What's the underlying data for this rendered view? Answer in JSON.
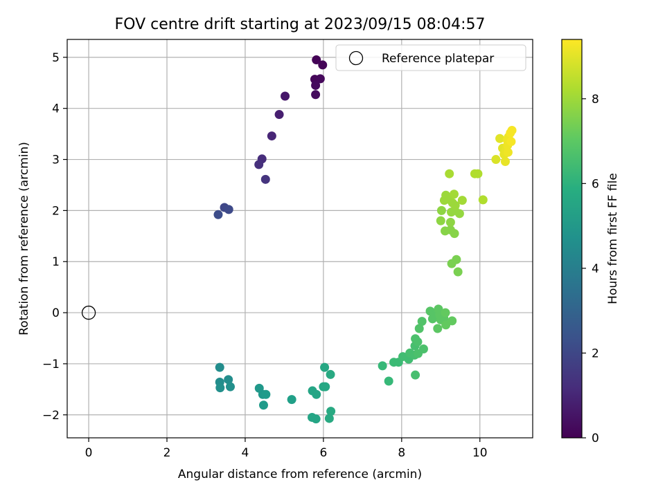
{
  "chart_data": {
    "type": "scatter",
    "title": "FOV centre drift starting at 2023/09/15 08:04:57",
    "xlabel": "Angular distance from reference (arcmin)",
    "ylabel": "Rotation from reference (arcmin)",
    "xlim": [
      -0.55,
      11.35
    ],
    "ylim": [
      -2.45,
      5.35
    ],
    "xticks": [
      "0",
      "2",
      "4",
      "6",
      "8",
      "10"
    ],
    "yticks": [
      "−2",
      "−1",
      "0",
      "1",
      "2",
      "3",
      "4",
      "5"
    ],
    "xtick_values": [
      0,
      2,
      4,
      6,
      8,
      10
    ],
    "ytick_values": [
      -2,
      -1,
      0,
      1,
      2,
      3,
      4,
      5
    ],
    "grid": true,
    "legend": {
      "position": "top-right",
      "entries": [
        "Reference platepar"
      ]
    },
    "reference_point": {
      "x": 0,
      "y": 0,
      "marker": "hollow-circle"
    },
    "colorbar": {
      "label": "Hours from first FF file",
      "colormap": "viridis",
      "range": [
        0,
        9.4
      ],
      "ticks": [
        "0",
        "2",
        "4",
        "6",
        "8"
      ],
      "tick_values": [
        0,
        2,
        4,
        6,
        8
      ]
    },
    "points": [
      {
        "x": 5.82,
        "y": 4.95,
        "c": 0.05
      },
      {
        "x": 5.98,
        "y": 4.85,
        "c": 0.1
      },
      {
        "x": 5.78,
        "y": 4.57,
        "c": 0.15
      },
      {
        "x": 5.92,
        "y": 4.58,
        "c": 0.2
      },
      {
        "x": 5.8,
        "y": 4.45,
        "c": 0.25
      },
      {
        "x": 5.8,
        "y": 4.27,
        "c": 0.3
      },
      {
        "x": 5.02,
        "y": 4.24,
        "c": 0.6
      },
      {
        "x": 4.87,
        "y": 3.88,
        "c": 0.8
      },
      {
        "x": 4.68,
        "y": 3.46,
        "c": 1.0
      },
      {
        "x": 4.43,
        "y": 3.01,
        "c": 1.2
      },
      {
        "x": 4.35,
        "y": 2.9,
        "c": 1.3
      },
      {
        "x": 4.52,
        "y": 2.61,
        "c": 1.4
      },
      {
        "x": 3.47,
        "y": 2.06,
        "c": 2.0
      },
      {
        "x": 3.58,
        "y": 2.02,
        "c": 2.1
      },
      {
        "x": 3.31,
        "y": 1.92,
        "c": 2.2
      },
      {
        "x": 3.35,
        "y": -1.07,
        "c": 4.6
      },
      {
        "x": 3.35,
        "y": -1.36,
        "c": 4.6
      },
      {
        "x": 3.57,
        "y": -1.31,
        "c": 4.6
      },
      {
        "x": 3.62,
        "y": -1.45,
        "c": 4.7
      },
      {
        "x": 3.36,
        "y": -1.47,
        "c": 4.7
      },
      {
        "x": 4.36,
        "y": -1.48,
        "c": 5.0
      },
      {
        "x": 4.45,
        "y": -1.6,
        "c": 5.0
      },
      {
        "x": 4.53,
        "y": -1.6,
        "c": 5.1
      },
      {
        "x": 4.47,
        "y": -1.81,
        "c": 5.1
      },
      {
        "x": 5.19,
        "y": -1.7,
        "c": 5.3
      },
      {
        "x": 5.72,
        "y": -1.53,
        "c": 5.5
      },
      {
        "x": 5.82,
        "y": -1.6,
        "c": 5.5
      },
      {
        "x": 6.0,
        "y": -1.45,
        "c": 5.6
      },
      {
        "x": 6.05,
        "y": -1.45,
        "c": 5.6
      },
      {
        "x": 6.03,
        "y": -1.07,
        "c": 5.6
      },
      {
        "x": 6.18,
        "y": -1.21,
        "c": 5.7
      },
      {
        "x": 5.71,
        "y": -2.05,
        "c": 5.5
      },
      {
        "x": 5.81,
        "y": -2.08,
        "c": 5.5
      },
      {
        "x": 6.19,
        "y": -1.93,
        "c": 5.7
      },
      {
        "x": 6.15,
        "y": -2.07,
        "c": 5.7
      },
      {
        "x": 7.51,
        "y": -1.04,
        "c": 6.3
      },
      {
        "x": 7.67,
        "y": -1.34,
        "c": 6.3
      },
      {
        "x": 7.8,
        "y": -0.97,
        "c": 6.4
      },
      {
        "x": 7.92,
        "y": -0.97,
        "c": 6.4
      },
      {
        "x": 8.03,
        "y": -0.86,
        "c": 6.5
      },
      {
        "x": 8.18,
        "y": -0.91,
        "c": 6.5
      },
      {
        "x": 8.21,
        "y": -0.79,
        "c": 6.6
      },
      {
        "x": 8.33,
        "y": -0.83,
        "c": 6.6
      },
      {
        "x": 8.34,
        "y": -0.65,
        "c": 6.6
      },
      {
        "x": 8.35,
        "y": -0.51,
        "c": 6.7
      },
      {
        "x": 8.41,
        "y": -0.57,
        "c": 6.7
      },
      {
        "x": 8.42,
        "y": -0.8,
        "c": 6.7
      },
      {
        "x": 8.56,
        "y": -0.71,
        "c": 6.7
      },
      {
        "x": 8.35,
        "y": -1.22,
        "c": 6.6
      },
      {
        "x": 8.45,
        "y": -0.31,
        "c": 6.8
      },
      {
        "x": 8.52,
        "y": -0.17,
        "c": 6.8
      },
      {
        "x": 8.73,
        "y": 0.03,
        "c": 6.9
      },
      {
        "x": 8.79,
        "y": -0.12,
        "c": 6.9
      },
      {
        "x": 8.85,
        "y": -0.06,
        "c": 6.9
      },
      {
        "x": 8.94,
        "y": 0.07,
        "c": 7.0
      },
      {
        "x": 8.97,
        "y": -0.04,
        "c": 7.0
      },
      {
        "x": 9.0,
        "y": -0.14,
        "c": 7.0
      },
      {
        "x": 9.08,
        "y": -0.11,
        "c": 7.0
      },
      {
        "x": 9.12,
        "y": 0.0,
        "c": 7.1
      },
      {
        "x": 8.92,
        "y": -0.31,
        "c": 7.0
      },
      {
        "x": 9.13,
        "y": -0.24,
        "c": 7.1
      },
      {
        "x": 9.29,
        "y": -0.16,
        "c": 7.1
      },
      {
        "x": 9.28,
        "y": 0.96,
        "c": 7.5
      },
      {
        "x": 9.4,
        "y": 1.04,
        "c": 7.5
      },
      {
        "x": 9.44,
        "y": 0.8,
        "c": 7.5
      },
      {
        "x": 9.35,
        "y": 1.55,
        "c": 7.7
      },
      {
        "x": 9.11,
        "y": 1.6,
        "c": 7.7
      },
      {
        "x": 9.25,
        "y": 1.62,
        "c": 7.7
      },
      {
        "x": 9.0,
        "y": 1.8,
        "c": 7.8
      },
      {
        "x": 9.25,
        "y": 1.77,
        "c": 7.8
      },
      {
        "x": 9.02,
        "y": 2.0,
        "c": 7.8
      },
      {
        "x": 9.27,
        "y": 1.97,
        "c": 7.9
      },
      {
        "x": 9.36,
        "y": 2.0,
        "c": 7.9
      },
      {
        "x": 9.48,
        "y": 1.94,
        "c": 7.9
      },
      {
        "x": 9.09,
        "y": 2.2,
        "c": 8.0
      },
      {
        "x": 9.13,
        "y": 2.3,
        "c": 8.0
      },
      {
        "x": 9.2,
        "y": 2.22,
        "c": 8.0
      },
      {
        "x": 9.3,
        "y": 2.15,
        "c": 8.0
      },
      {
        "x": 9.37,
        "y": 2.1,
        "c": 8.0
      },
      {
        "x": 9.34,
        "y": 2.32,
        "c": 8.1
      },
      {
        "x": 9.55,
        "y": 2.2,
        "c": 8.1
      },
      {
        "x": 9.22,
        "y": 2.72,
        "c": 8.2
      },
      {
        "x": 9.87,
        "y": 2.72,
        "c": 8.3
      },
      {
        "x": 9.95,
        "y": 2.72,
        "c": 8.3
      },
      {
        "x": 10.08,
        "y": 2.21,
        "c": 8.3
      },
      {
        "x": 10.41,
        "y": 3.0,
        "c": 8.9
      },
      {
        "x": 10.51,
        "y": 3.41,
        "c": 9.0
      },
      {
        "x": 10.58,
        "y": 3.22,
        "c": 9.0
      },
      {
        "x": 10.62,
        "y": 3.1,
        "c": 9.1
      },
      {
        "x": 10.65,
        "y": 2.96,
        "c": 9.1
      },
      {
        "x": 10.67,
        "y": 3.2,
        "c": 9.1
      },
      {
        "x": 10.7,
        "y": 3.38,
        "c": 9.2
      },
      {
        "x": 10.71,
        "y": 3.28,
        "c": 9.2
      },
      {
        "x": 10.73,
        "y": 3.44,
        "c": 9.2
      },
      {
        "x": 10.72,
        "y": 3.14,
        "c": 9.2
      },
      {
        "x": 10.78,
        "y": 3.52,
        "c": 9.3
      },
      {
        "x": 10.8,
        "y": 3.35,
        "c": 9.3
      },
      {
        "x": 10.82,
        "y": 3.57,
        "c": 9.3
      }
    ]
  }
}
